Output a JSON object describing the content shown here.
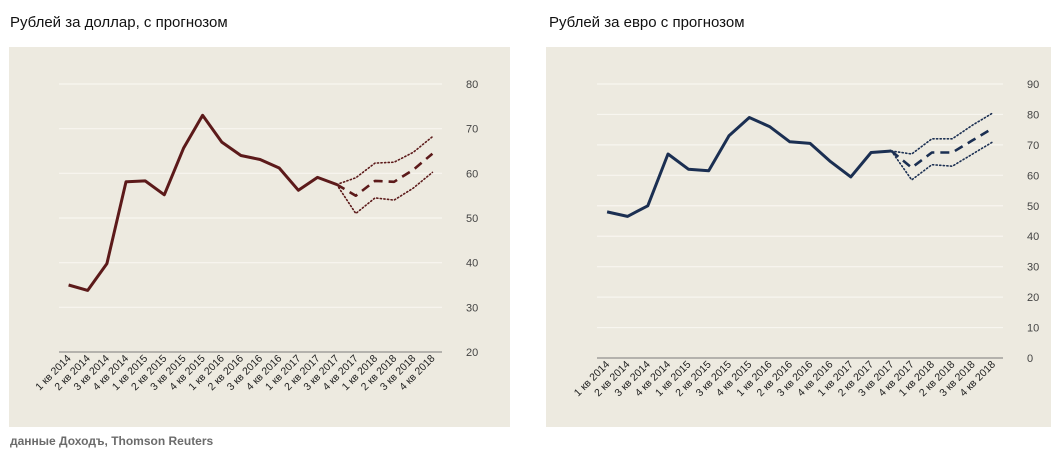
{
  "charts_header": {
    "left_title": "Рублей за доллар, с прогнозом",
    "right_title": "Рублей за евро с прогнозом"
  },
  "source": "данные Доходъ, Thomson Reuters",
  "colors": {
    "panel_bg": "#EDEAE0",
    "grid": "#F8F6F0",
    "usd_line": "#5C1A1A",
    "eur_line": "#1B2F52"
  },
  "chart_data": [
    {
      "type": "line",
      "title": "Рублей за доллар, с прогнозом",
      "xlabel": "",
      "ylabel": "",
      "ylim": [
        20,
        80
      ],
      "yticks": [
        20,
        30,
        40,
        50,
        60,
        70,
        80
      ],
      "grid": true,
      "legend": "none",
      "categories": [
        "1 кв 2014",
        "2 кв 2014",
        "3 кв 2014",
        "4 кв 2014",
        "1 кв 2015",
        "2 кв 2015",
        "3 кв 2015",
        "4 кв 2015",
        "1 кв 2016",
        "2 кв 2016",
        "3 кв 2016",
        "4 кв 2016",
        "1 кв 2017",
        "2 кв 2017",
        "3 кв 2017",
        "4 кв 2017",
        "1 кв 2018",
        "2 кв 2018",
        "3 кв 2018",
        "4 кв 2018"
      ],
      "series": [
        {
          "style": "solid",
          "values": [
            35.0,
            33.8,
            39.8,
            58.1,
            58.3,
            55.2,
            65.6,
            73.0,
            67.0,
            64.0,
            63.1,
            61.2,
            56.2,
            59.1,
            57.5,
            null,
            null,
            null,
            null,
            null
          ]
        },
        {
          "style": "dashed",
          "values": [
            null,
            null,
            null,
            null,
            null,
            null,
            null,
            null,
            null,
            null,
            null,
            null,
            null,
            null,
            57.5,
            55.0,
            58.3,
            58.1,
            60.8,
            64.4
          ]
        },
        {
          "style": "dotted",
          "values": [
            null,
            null,
            null,
            null,
            null,
            null,
            null,
            null,
            null,
            null,
            null,
            null,
            null,
            null,
            57.5,
            59.0,
            62.3,
            62.5,
            64.7,
            68.2
          ]
        },
        {
          "style": "dotted",
          "values": [
            null,
            null,
            null,
            null,
            null,
            null,
            null,
            null,
            null,
            null,
            null,
            null,
            null,
            null,
            57.5,
            51.0,
            54.5,
            54.0,
            56.7,
            60.2
          ]
        }
      ]
    },
    {
      "type": "line",
      "title": "Рублей за евро с прогнозом",
      "xlabel": "",
      "ylabel": "",
      "ylim": [
        0,
        90
      ],
      "yticks": [
        0,
        10,
        20,
        30,
        40,
        50,
        60,
        70,
        80,
        90
      ],
      "grid": true,
      "legend": "none",
      "categories": [
        "1 кв 2014",
        "2 кв 2014",
        "3 кв 2014",
        "4 кв 2014",
        "1 кв 2015",
        "2 кв 2015",
        "3 кв 2015",
        "4 кв 2015",
        "1 кв 2016",
        "2 кв 2016",
        "3 кв 2016",
        "4 кв 2016",
        "1 кв 2017",
        "2 кв 2017",
        "3 кв 2017",
        "4 кв 2017",
        "1 кв 2018",
        "2 кв 2018",
        "3 кв 2018",
        "4 кв 2018"
      ],
      "series": [
        {
          "style": "solid",
          "values": [
            48.0,
            46.5,
            50.0,
            67.0,
            62.0,
            61.5,
            73.0,
            79.0,
            76.0,
            71.0,
            70.5,
            64.5,
            59.5,
            67.5,
            68.0,
            null,
            null,
            null,
            null,
            null
          ]
        },
        {
          "style": "dashed",
          "values": [
            null,
            null,
            null,
            null,
            null,
            null,
            null,
            null,
            null,
            null,
            null,
            null,
            null,
            null,
            68.0,
            62.5,
            67.5,
            67.5,
            71.5,
            75.5
          ]
        },
        {
          "style": "dotted",
          "values": [
            null,
            null,
            null,
            null,
            null,
            null,
            null,
            null,
            null,
            null,
            null,
            null,
            null,
            null,
            68.0,
            67.0,
            72.0,
            72.0,
            76.5,
            80.5
          ]
        },
        {
          "style": "dotted",
          "values": [
            null,
            null,
            null,
            null,
            null,
            null,
            null,
            null,
            null,
            null,
            null,
            null,
            null,
            null,
            68.0,
            58.5,
            63.5,
            63.0,
            67.0,
            71.0
          ]
        }
      ]
    }
  ]
}
